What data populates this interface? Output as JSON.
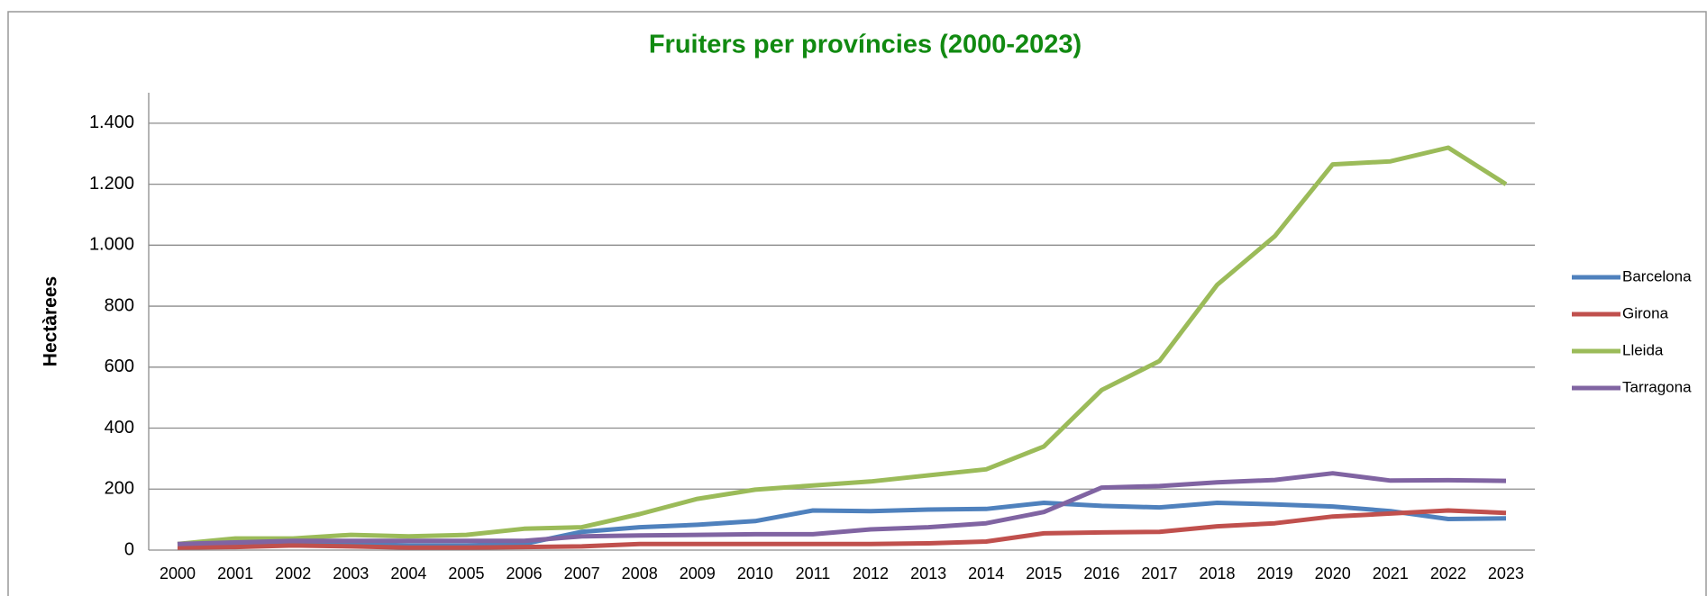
{
  "chart_data": {
    "type": "line",
    "title": "Fruiters per províncies (2000-2023)",
    "y_label": "Hectàrees",
    "categories": [
      "2000",
      "2001",
      "2002",
      "2003",
      "2004",
      "2005",
      "2006",
      "2007",
      "2008",
      "2009",
      "2010",
      "2011",
      "2012",
      "2013",
      "2014",
      "2015",
      "2016",
      "2017",
      "2018",
      "2019",
      "2020",
      "2021",
      "2022",
      "2023"
    ],
    "series": [
      {
        "name": "Barcelona",
        "color": "#4f81bd",
        "values": [
          15,
          20,
          25,
          20,
          15,
          15,
          20,
          60,
          75,
          83,
          95,
          130,
          128,
          133,
          135,
          155,
          145,
          140,
          155,
          150,
          143,
          128,
          102,
          104
        ]
      },
      {
        "name": "Girona",
        "color": "#c0504d",
        "values": [
          8,
          10,
          15,
          12,
          8,
          8,
          10,
          12,
          20,
          20,
          20,
          20,
          20,
          22,
          28,
          55,
          58,
          60,
          78,
          88,
          110,
          120,
          130,
          122
        ]
      },
      {
        "name": "Lleida",
        "color": "#9bbb59",
        "values": [
          20,
          38,
          38,
          50,
          45,
          50,
          70,
          75,
          118,
          168,
          198,
          212,
          225,
          245,
          265,
          340,
          525,
          620,
          870,
          1030,
          1265,
          1275,
          1320,
          1200
        ]
      },
      {
        "name": "Tarragona",
        "color": "#8064a2",
        "values": [
          20,
          25,
          30,
          30,
          30,
          30,
          30,
          45,
          48,
          50,
          52,
          52,
          68,
          75,
          88,
          125,
          205,
          210,
          222,
          230,
          252,
          228,
          229,
          227
        ]
      }
    ],
    "ylim": [
      0,
      1500
    ],
    "yticks": [
      0,
      200,
      400,
      600,
      800,
      {
        "value": 1000,
        "label": "1.000"
      },
      {
        "value": 1200,
        "label": "1.200"
      },
      {
        "value": 1400,
        "label": "1.400"
      }
    ],
    "grid": true,
    "legend": "right"
  }
}
